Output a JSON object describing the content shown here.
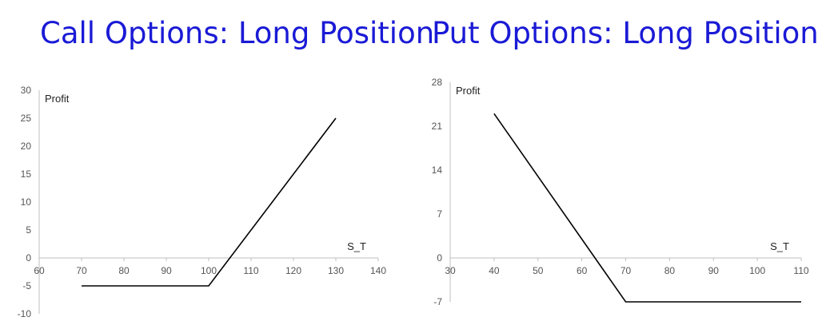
{
  "titles": [
    "Call Options: Long Position",
    "Put Options: Long Position"
  ],
  "chart_data": [
    {
      "type": "line",
      "title": "Call Options: Long Position",
      "xlabel": "S_T",
      "ylabel": "Profit",
      "xlim": [
        60,
        140
      ],
      "ylim": [
        -10,
        30
      ],
      "x_ticks": [
        60,
        70,
        80,
        90,
        100,
        110,
        120,
        130,
        140
      ],
      "y_ticks": [
        -10,
        -5,
        0,
        5,
        10,
        15,
        20,
        25,
        30
      ],
      "grid": false,
      "series": [
        {
          "x": [
            70,
            100,
            130
          ],
          "values": [
            -5,
            -5,
            25
          ]
        }
      ]
    },
    {
      "type": "line",
      "title": "Put Options: Long Position",
      "xlabel": "S_T",
      "ylabel": "Profit",
      "xlim": [
        30,
        110
      ],
      "ylim": [
        -7,
        28
      ],
      "x_ticks": [
        30,
        40,
        50,
        60,
        70,
        80,
        90,
        100,
        110
      ],
      "y_ticks": [
        -7,
        0,
        7,
        14,
        21,
        28
      ],
      "grid": false,
      "series": [
        {
          "x": [
            40,
            70,
            110
          ],
          "values": [
            23,
            -7,
            -7
          ]
        }
      ]
    }
  ]
}
